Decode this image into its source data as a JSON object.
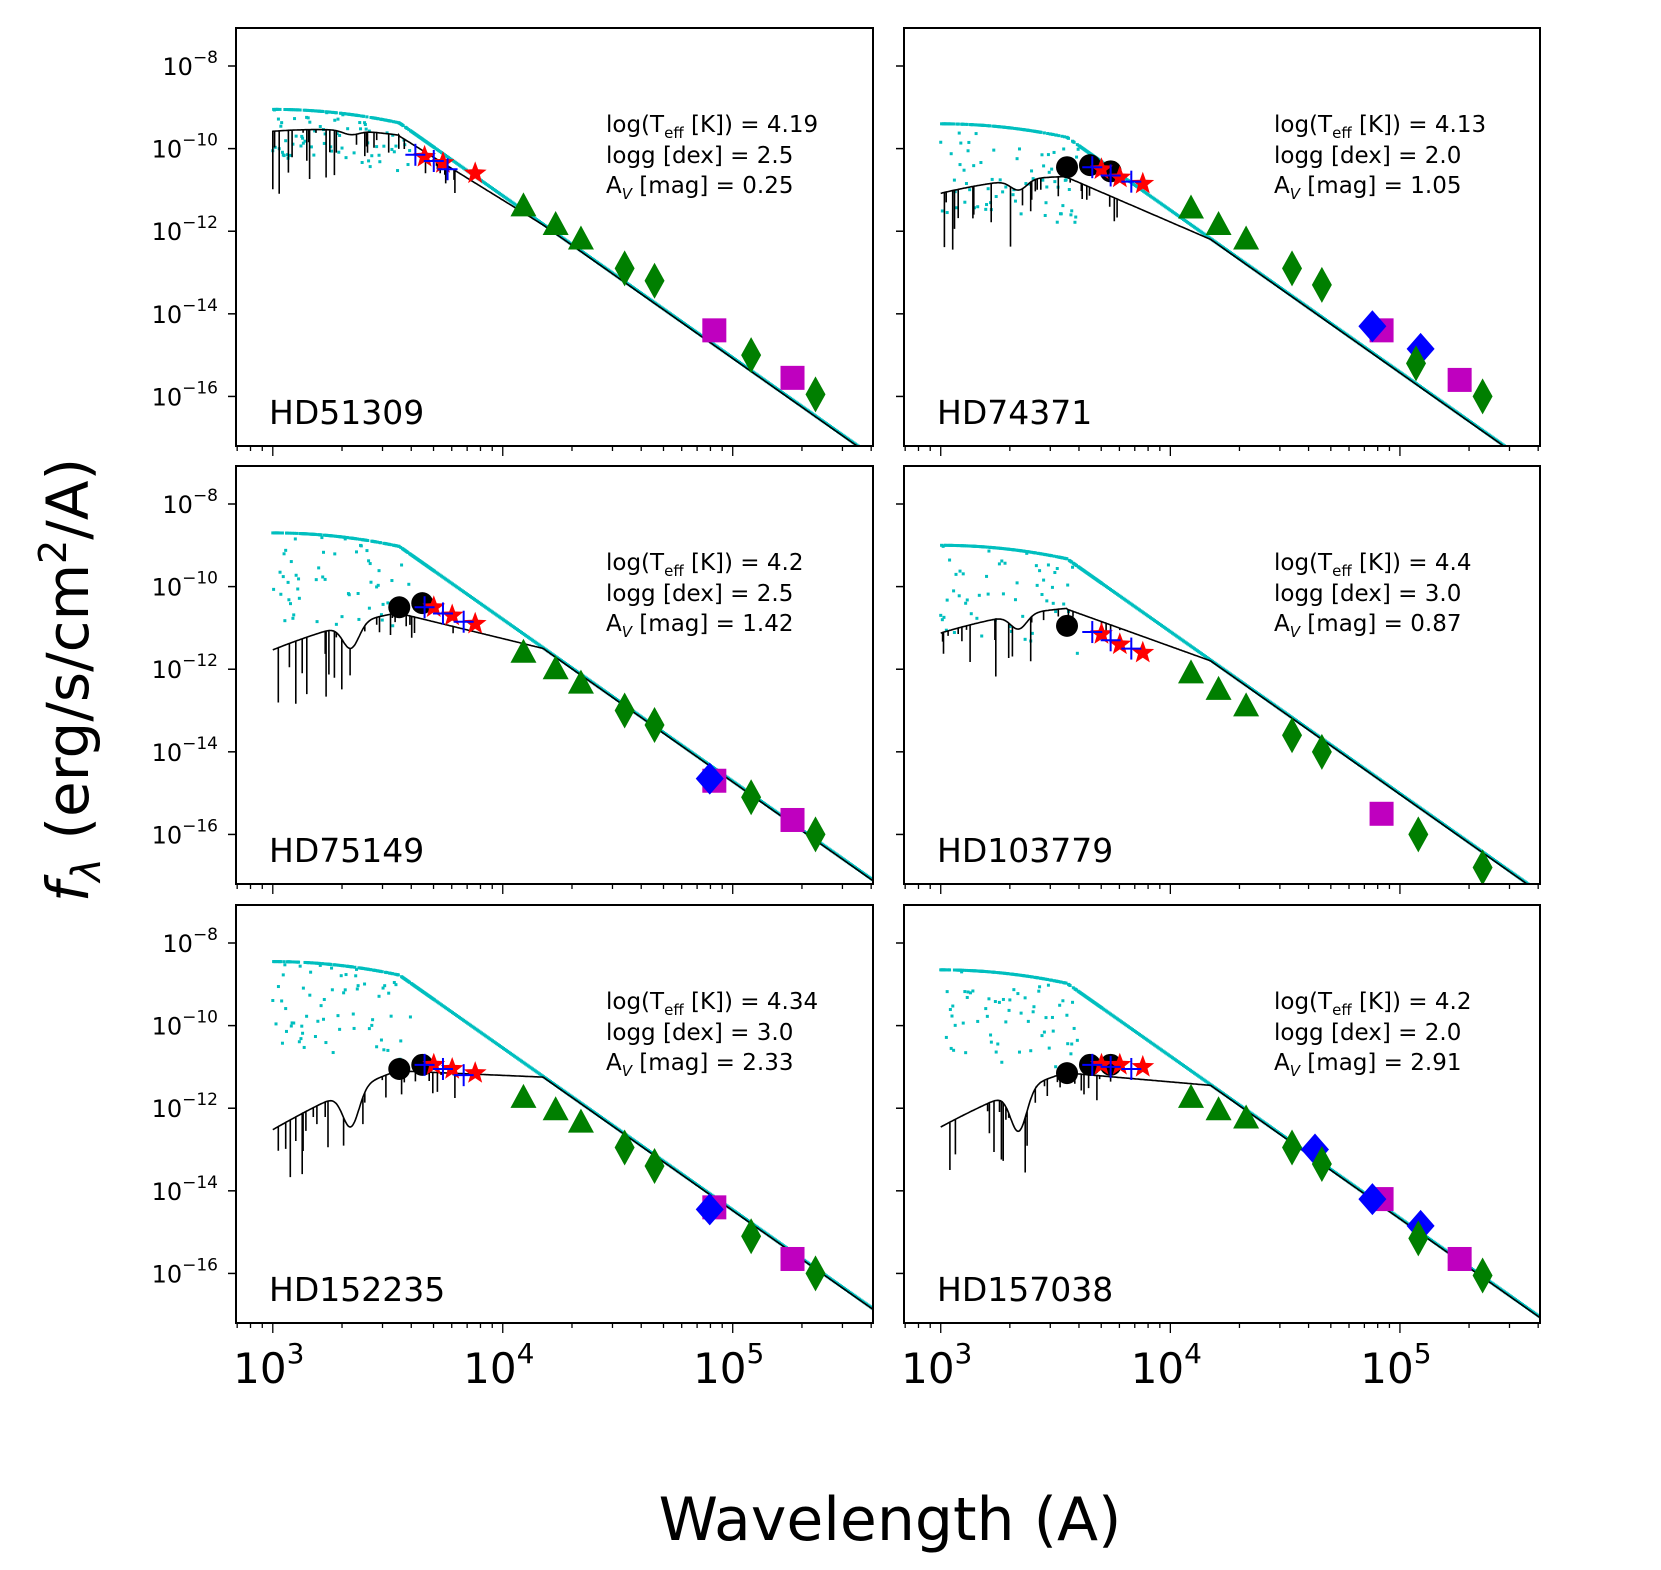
{
  "figure": {
    "xlabel": "Wavelength (A)",
    "ylabel_prefix": "f",
    "ylabel_sub": "λ",
    "ylabel_rest": " (erg/s/cm",
    "ylabel_sup": "2",
    "ylabel_end": "/A)"
  },
  "chart_data": [
    {
      "type": "scatter",
      "panel": "top-left",
      "star": "HD51309",
      "logTeff": "4.19",
      "logg": "2.5",
      "Av": "0.25",
      "annotation": [
        "log(T",
        "eff",
        " [K]) = 4.19",
        "logg [dex] = 2.5",
        "A",
        "V",
        " [mag] = 0.25"
      ],
      "xscale": "log",
      "yscale": "log",
      "xlim_log10": [
        2.84,
        5.61
      ],
      "ylim_log10": [
        -17.2,
        -7.08
      ],
      "xticks": [
        "10^3",
        "10^4",
        "10^5"
      ],
      "yticks": [
        "10^-8",
        "10^-10",
        "10^-12",
        "10^-14",
        "10^-16"
      ],
      "model": {
        "peak_log_flux_unreddened": -9.15,
        "peak_log_flux_reddened": -9.45,
        "uv_bump_depth": 0.1
      },
      "photometry": {
        "uv_circles_black": [],
        "optical_blue_plus": [
          [
            3.62,
            -10.15
          ],
          [
            3.7,
            -10.3
          ],
          [
            3.76,
            -10.5
          ]
        ],
        "optical_red_stars": [
          [
            3.66,
            -10.2
          ],
          [
            3.74,
            -10.35
          ],
          [
            3.88,
            -10.6
          ]
        ],
        "nir_green_triangles": [
          [
            4.09,
            -11.4
          ],
          [
            4.23,
            -11.85
          ],
          [
            4.34,
            -12.2
          ]
        ],
        "wise_green_diamonds": [
          [
            4.53,
            -12.9
          ],
          [
            4.66,
            -13.2
          ],
          [
            5.08,
            -15.0
          ],
          [
            5.36,
            -15.95
          ]
        ],
        "blue_diamonds": [],
        "magenta_squares": [
          [
            4.92,
            -14.4
          ],
          [
            5.26,
            -15.55
          ]
        ]
      }
    },
    {
      "type": "scatter",
      "panel": "top-right",
      "star": "HD74371",
      "logTeff": "4.13",
      "logg": "2.0",
      "Av": "1.05",
      "annotation": [
        "log(T",
        "eff",
        " [K]) = 4.13",
        "logg [dex] = 2.0",
        "A",
        "V",
        " [mag] = 1.05"
      ],
      "xscale": "log",
      "yscale": "log",
      "xlim_log10": [
        2.84,
        5.61
      ],
      "ylim_log10": [
        -17.2,
        -7.08
      ],
      "xticks": [
        "10^3",
        "10^4",
        "10^5"
      ],
      "yticks": [
        "10^-8",
        "10^-10",
        "10^-12",
        "10^-14",
        "10^-16"
      ],
      "model": {
        "peak_log_flux_unreddened": -9.5,
        "peak_log_flux_reddened": -10.45,
        "uv_bump_depth": 0.25
      },
      "photometry": {
        "uv_circles_black": [
          [
            3.55,
            -10.45
          ],
          [
            3.65,
            -10.4
          ],
          [
            3.74,
            -10.55
          ]
        ],
        "optical_blue_plus": [
          [
            3.66,
            -10.45
          ],
          [
            3.74,
            -10.65
          ],
          [
            3.83,
            -10.8
          ]
        ],
        "optical_red_stars": [
          [
            3.7,
            -10.5
          ],
          [
            3.78,
            -10.7
          ],
          [
            3.88,
            -10.85
          ]
        ],
        "nir_green_triangles": [
          [
            4.09,
            -11.45
          ],
          [
            4.21,
            -11.85
          ],
          [
            4.33,
            -12.2
          ]
        ],
        "wise_green_diamonds": [
          [
            4.53,
            -12.9
          ],
          [
            4.66,
            -13.3
          ],
          [
            5.07,
            -15.2
          ],
          [
            5.36,
            -16.0
          ]
        ],
        "blue_diamonds": [
          [
            4.88,
            -14.3
          ],
          [
            5.09,
            -14.85
          ]
        ],
        "magenta_squares": [
          [
            4.92,
            -14.4
          ],
          [
            5.26,
            -15.6
          ]
        ]
      }
    },
    {
      "type": "scatter",
      "panel": "middle-left",
      "star": "HD75149",
      "logTeff": "4.2",
      "logg": "2.5",
      "Av": "1.42",
      "annotation": [
        "log(T",
        "eff",
        " [K]) = 4.2",
        "logg [dex] = 2.5",
        "A",
        "V",
        " [mag] = 1.42"
      ],
      "xscale": "log",
      "yscale": "log",
      "xlim_log10": [
        2.84,
        5.61
      ],
      "ylim_log10": [
        -17.2,
        -7.08
      ],
      "xticks": [
        "10^3",
        "10^4",
        "10^5"
      ],
      "yticks": [
        "10^-8",
        "10^-10",
        "10^-12",
        "10^-14",
        "10^-16"
      ],
      "model": {
        "peak_log_flux_unreddened": -8.8,
        "peak_log_flux_reddened": -10.4,
        "uv_bump_depth": 0.6
      },
      "photometry": {
        "uv_circles_black": [
          [
            3.55,
            -10.5
          ],
          [
            3.65,
            -10.4
          ]
        ],
        "optical_blue_plus": [
          [
            3.66,
            -10.5
          ],
          [
            3.74,
            -10.65
          ],
          [
            3.83,
            -10.85
          ]
        ],
        "optical_red_stars": [
          [
            3.7,
            -10.5
          ],
          [
            3.78,
            -10.7
          ],
          [
            3.88,
            -10.9
          ]
        ],
        "nir_green_triangles": [
          [
            4.09,
            -11.6
          ],
          [
            4.23,
            -12.0
          ],
          [
            4.34,
            -12.35
          ]
        ],
        "wise_green_diamonds": [
          [
            4.53,
            -13.0
          ],
          [
            4.66,
            -13.35
          ],
          [
            5.08,
            -15.1
          ],
          [
            5.36,
            -16.0
          ]
        ],
        "blue_diamonds": [
          [
            4.9,
            -14.65
          ]
        ],
        "magenta_squares": [
          [
            4.92,
            -14.7
          ],
          [
            5.26,
            -15.65
          ]
        ]
      }
    },
    {
      "type": "scatter",
      "panel": "middle-right",
      "star": "HD103779",
      "logTeff": "4.4",
      "logg": "3.0",
      "Av": "0.87",
      "annotation": [
        "log(T",
        "eff",
        " [K]) = 4.4",
        "logg [dex] = 3.0",
        "A",
        "V",
        " [mag] = 0.87"
      ],
      "xscale": "log",
      "yscale": "log",
      "xlim_log10": [
        2.84,
        5.61
      ],
      "ylim_log10": [
        -17.2,
        -7.08
      ],
      "xticks": [
        "10^3",
        "10^4",
        "10^5"
      ],
      "yticks": [
        "10^-8",
        "10^-10",
        "10^-12",
        "10^-14",
        "10^-16"
      ],
      "model": {
        "peak_log_flux_unreddened": -9.1,
        "peak_log_flux_reddened": -10.3,
        "uv_bump_depth": 0.35
      },
      "photometry": {
        "uv_circles_black": [
          [
            3.55,
            -10.95
          ]
        ],
        "optical_blue_plus": [
          [
            3.66,
            -11.1
          ],
          [
            3.74,
            -11.3
          ],
          [
            3.83,
            -11.5
          ]
        ],
        "optical_red_stars": [
          [
            3.7,
            -11.15
          ],
          [
            3.78,
            -11.4
          ],
          [
            3.88,
            -11.6
          ]
        ],
        "nir_green_triangles": [
          [
            4.09,
            -12.1
          ],
          [
            4.21,
            -12.5
          ],
          [
            4.33,
            -12.9
          ]
        ],
        "wise_green_diamonds": [
          [
            4.53,
            -13.6
          ],
          [
            4.66,
            -14.0
          ],
          [
            5.08,
            -16.0
          ],
          [
            5.36,
            -16.8
          ]
        ],
        "blue_diamonds": [],
        "magenta_squares": [
          [
            4.92,
            -15.5
          ]
        ]
      }
    },
    {
      "type": "scatter",
      "panel": "bottom-left",
      "star": "HD152235",
      "logTeff": "4.34",
      "logg": "3.0",
      "Av": "2.33",
      "annotation": [
        "log(T",
        "eff",
        " [K]) = 4.34",
        "logg [dex] = 3.0",
        "A",
        "V",
        " [mag] = 2.33"
      ],
      "xscale": "log",
      "yscale": "log",
      "xlim_log10": [
        2.84,
        5.61
      ],
      "ylim_log10": [
        -17.2,
        -7.08
      ],
      "xticks": [
        "10^3",
        "10^4",
        "10^5"
      ],
      "yticks": [
        "10^-8",
        "10^-10",
        "10^-12",
        "10^-14",
        "10^-16"
      ],
      "model": {
        "peak_log_flux_unreddened": -8.55,
        "peak_log_flux_reddened": -10.85,
        "uv_bump_depth": 0.9
      },
      "photometry": {
        "uv_circles_black": [
          [
            3.55,
            -11.05
          ],
          [
            3.65,
            -10.95
          ]
        ],
        "optical_blue_plus": [
          [
            3.66,
            -10.95
          ],
          [
            3.74,
            -11.05
          ],
          [
            3.83,
            -11.2
          ]
        ],
        "optical_red_stars": [
          [
            3.7,
            -10.95
          ],
          [
            3.78,
            -11.05
          ],
          [
            3.88,
            -11.15
          ]
        ],
        "nir_green_triangles": [
          [
            4.09,
            -11.75
          ],
          [
            4.23,
            -12.05
          ],
          [
            4.34,
            -12.35
          ]
        ],
        "wise_green_diamonds": [
          [
            4.53,
            -12.95
          ],
          [
            4.66,
            -13.4
          ],
          [
            5.08,
            -15.1
          ],
          [
            5.36,
            -16.0
          ]
        ],
        "blue_diamonds": [
          [
            4.9,
            -14.45
          ]
        ],
        "magenta_squares": [
          [
            4.92,
            -14.4
          ],
          [
            5.26,
            -15.65
          ]
        ]
      }
    },
    {
      "type": "scatter",
      "panel": "bottom-right",
      "star": "HD157038",
      "logTeff": "4.2",
      "logg": "2.0",
      "Av": "2.91",
      "annotation": [
        "log(T",
        "eff",
        " [K]) = 4.2",
        "logg [dex] = 2.0",
        "A",
        "V",
        " [mag] = 2.91"
      ],
      "xscale": "log",
      "yscale": "log",
      "xlim_log10": [
        2.84,
        5.61
      ],
      "ylim_log10": [
        -17.2,
        -7.08
      ],
      "xticks": [
        "10^3",
        "10^4",
        "10^5"
      ],
      "yticks": [
        "10^-8",
        "10^-10",
        "10^-12",
        "10^-14",
        "10^-16"
      ],
      "model": {
        "peak_log_flux_unreddened": -8.75,
        "peak_log_flux_reddened": -10.9,
        "uv_bump_depth": 1.0
      },
      "photometry": {
        "uv_circles_black": [
          [
            3.55,
            -11.15
          ],
          [
            3.65,
            -10.95
          ],
          [
            3.74,
            -10.95
          ]
        ],
        "optical_blue_plus": [
          [
            3.66,
            -10.95
          ],
          [
            3.74,
            -11.0
          ],
          [
            3.83,
            -11.05
          ]
        ],
        "optical_red_stars": [
          [
            3.7,
            -10.95
          ],
          [
            3.78,
            -10.95
          ],
          [
            3.88,
            -11.0
          ]
        ],
        "nir_green_triangles": [
          [
            4.09,
            -11.75
          ],
          [
            4.21,
            -12.05
          ],
          [
            4.33,
            -12.25
          ]
        ],
        "wise_green_diamonds": [
          [
            4.53,
            -12.95
          ],
          [
            4.66,
            -13.35
          ],
          [
            5.08,
            -15.15
          ],
          [
            5.36,
            -16.05
          ]
        ],
        "blue_diamonds": [
          [
            4.63,
            -13.0
          ],
          [
            4.88,
            -14.2
          ],
          [
            5.09,
            -14.85
          ]
        ],
        "magenta_squares": [
          [
            4.92,
            -14.2
          ],
          [
            5.26,
            -15.65
          ]
        ]
      }
    }
  ],
  "colors": {
    "model_unreddened": "#00bfbf",
    "model_reddened": "#000000",
    "uv": "#000000",
    "optical_plus": "#0000ff",
    "optical_star": "#ff0000",
    "nir": "#007f00",
    "wise": "#007f00",
    "blue_diamond": "#0000ff",
    "magenta": "#bf00bf"
  }
}
